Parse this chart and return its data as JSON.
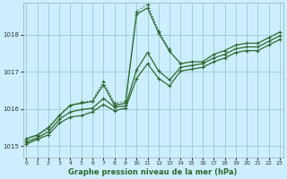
{
  "xlabel": "Graphe pression niveau de la mer (hPa)",
  "ylim": [
    1014.7,
    1018.85
  ],
  "xlim": [
    -0.3,
    23.3
  ],
  "yticks": [
    1015,
    1016,
    1017,
    1018
  ],
  "xticks": [
    0,
    1,
    2,
    3,
    4,
    5,
    6,
    7,
    8,
    9,
    10,
    11,
    12,
    13,
    14,
    15,
    16,
    17,
    18,
    19,
    20,
    21,
    22,
    23
  ],
  "bg_color": "#cceeff",
  "grid_color": "#99cccc",
  "line_color": "#2d6a2d",
  "series_dotted": {
    "x": [
      0,
      1,
      2,
      3,
      4,
      5,
      6,
      7,
      8,
      9,
      10,
      11,
      12,
      13
    ],
    "y": [
      1015.15,
      1015.28,
      1015.45,
      1015.82,
      1016.1,
      1016.18,
      1016.22,
      1016.75,
      1016.15,
      1016.2,
      1018.62,
      1018.82,
      1018.1,
      1017.6
    ]
  },
  "series1": [
    1015.2,
    1015.3,
    1015.5,
    1015.82,
    1016.1,
    1016.15,
    1016.2,
    1016.65,
    1016.1,
    1016.15,
    1018.55,
    1018.72,
    1018.05,
    1017.55,
    1017.22,
    1017.27,
    1017.27,
    1017.47,
    1017.57,
    1017.72,
    1017.77,
    1017.77,
    1017.92,
    1018.07
  ],
  "series2": [
    1015.1,
    1015.22,
    1015.38,
    1015.72,
    1015.92,
    1015.98,
    1016.02,
    1016.28,
    1016.05,
    1016.08,
    1017.05,
    1017.52,
    1017.02,
    1016.78,
    1017.12,
    1017.17,
    1017.22,
    1017.37,
    1017.47,
    1017.62,
    1017.67,
    1017.67,
    1017.82,
    1017.97
  ],
  "series3": [
    1015.05,
    1015.18,
    1015.3,
    1015.62,
    1015.78,
    1015.82,
    1015.92,
    1016.12,
    1015.95,
    1016.02,
    1016.82,
    1017.22,
    1016.82,
    1016.62,
    1017.02,
    1017.07,
    1017.12,
    1017.27,
    1017.37,
    1017.52,
    1017.57,
    1017.57,
    1017.72,
    1017.87
  ],
  "markersize": 3,
  "linewidth": 0.9
}
